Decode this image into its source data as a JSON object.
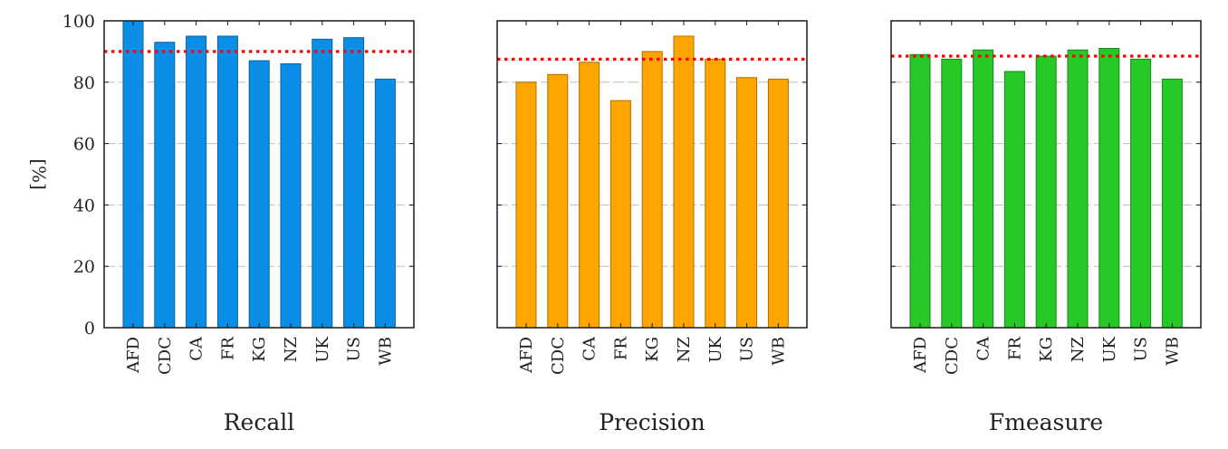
{
  "chart_data": [
    {
      "type": "bar",
      "title": "Recall",
      "ylabel": "[%]",
      "ylim": [
        0,
        100
      ],
      "yticks": [
        "0",
        "20",
        "40",
        "60",
        "80",
        "100"
      ],
      "categories": [
        "AFD",
        "CDC",
        "CA",
        "FR",
        "KG",
        "NZ",
        "UK",
        "US",
        "WB"
      ],
      "values": [
        100,
        93,
        95,
        95,
        87,
        86,
        94,
        94.5,
        81
      ],
      "reference_line": 90,
      "bar_color": "#0a8ee6",
      "bar_edge_color": "#0a5fa0",
      "reference_color": "#ff0000",
      "grid": true
    },
    {
      "type": "bar",
      "title": "Precision",
      "ylabel": "",
      "ylim": [
        0,
        100
      ],
      "yticks": [],
      "categories": [
        "AFD",
        "CDC",
        "CA",
        "FR",
        "KG",
        "NZ",
        "UK",
        "US",
        "WB"
      ],
      "values": [
        80,
        82.5,
        86.5,
        74,
        90,
        95,
        87.5,
        81.5,
        81
      ],
      "reference_line": 87.5,
      "bar_color": "#ffa500",
      "bar_edge_color": "#b06e00",
      "reference_color": "#ff0000",
      "grid": true
    },
    {
      "type": "bar",
      "title": "Fmeasure",
      "ylabel": "",
      "ylim": [
        0,
        100
      ],
      "yticks": [],
      "categories": [
        "AFD",
        "CDC",
        "CA",
        "FR",
        "KG",
        "NZ",
        "UK",
        "US",
        "WB"
      ],
      "values": [
        89,
        87.5,
        90.5,
        83.5,
        88.5,
        90.5,
        91,
        87.5,
        81
      ],
      "reference_line": 88.5,
      "bar_color": "#26c926",
      "bar_edge_color": "#138a13",
      "reference_color": "#ff0000",
      "grid": true
    }
  ]
}
